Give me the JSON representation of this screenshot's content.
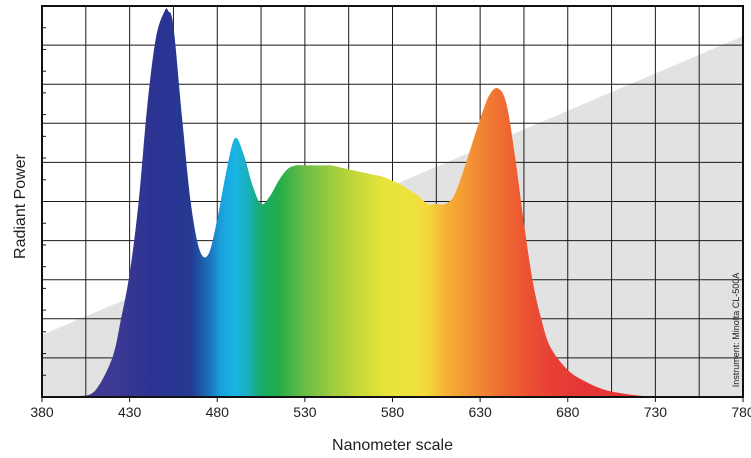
{
  "chart_data": {
    "type": "area",
    "title": "",
    "xlabel": "Nanometer scale",
    "ylabel": "Radiant Power",
    "xlim": [
      380,
      780
    ],
    "ylim": [
      0,
      1
    ],
    "x_ticks": [
      380,
      430,
      480,
      530,
      580,
      630,
      680,
      730,
      780
    ],
    "x_tick_labels": [
      "380",
      "430",
      "480",
      "530",
      "580",
      "630",
      "680",
      "730",
      "780"
    ],
    "grid": true,
    "legend": "none",
    "fill": "visible-spectrum-gradient",
    "background_band": "#e2e2e2",
    "annotation": "Instrument: Minolta CL-500A",
    "series": [
      {
        "x": [
          390,
          400,
          410,
          420,
          425,
          430,
          435,
          440,
          445,
          450,
          452,
          455,
          460,
          465,
          470,
          475,
          480,
          485,
          490,
          495,
          500,
          505,
          510,
          515,
          520,
          525,
          530,
          535,
          540,
          545,
          550,
          555,
          560,
          565,
          570,
          575,
          580,
          585,
          590,
          595,
          600,
          605,
          610,
          615,
          620,
          625,
          630,
          635,
          640,
          645,
          650,
          655,
          660,
          665,
          670,
          680,
          690,
          700,
          710,
          720,
          730,
          740
        ],
        "y": [
          0.0,
          0.002,
          0.015,
          0.1,
          0.2,
          0.32,
          0.5,
          0.75,
          0.93,
          1.0,
          1.0,
          0.96,
          0.72,
          0.5,
          0.38,
          0.37,
          0.46,
          0.58,
          0.67,
          0.63,
          0.55,
          0.5,
          0.52,
          0.56,
          0.59,
          0.6,
          0.6,
          0.6,
          0.6,
          0.6,
          0.595,
          0.59,
          0.585,
          0.58,
          0.575,
          0.57,
          0.56,
          0.55,
          0.535,
          0.52,
          0.5,
          0.5,
          0.5,
          0.52,
          0.58,
          0.65,
          0.72,
          0.78,
          0.8,
          0.76,
          0.62,
          0.45,
          0.3,
          0.2,
          0.13,
          0.07,
          0.04,
          0.02,
          0.01,
          0.004,
          0.001,
          0.0
        ]
      }
    ]
  }
}
